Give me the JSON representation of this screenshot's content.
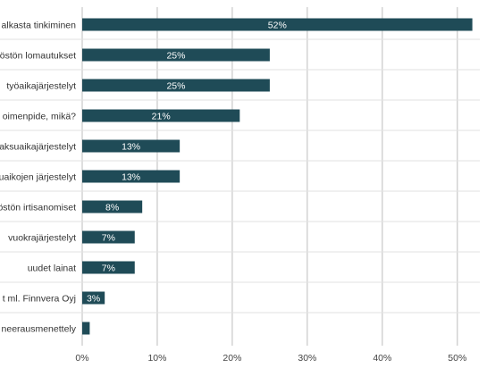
{
  "chart_data": {
    "type": "bar",
    "orientation": "horizontal",
    "title": "",
    "xlabel": "",
    "ylabel": "",
    "categories": [
      "alkasta tinkiminen",
      "östön lomautukset",
      "työaikajärjestelyt",
      "oimenpide, mikä?",
      "aksuaikajärjestelyt",
      "uaikojen järjestelyt",
      "östön irtisanomiset",
      "vuokrajärjestelyt",
      "uudet lainat",
      "t ml. Finnvera Oyj",
      "neerausmenettely"
    ],
    "values": [
      52,
      25,
      25,
      21,
      13,
      13,
      8,
      7,
      7,
      3,
      1
    ],
    "value_labels": [
      "52%",
      "25%",
      "25%",
      "21%",
      "13%",
      "13%",
      "8%",
      "7%",
      "7%",
      "3%",
      ""
    ],
    "xlim": [
      0,
      53
    ],
    "x_ticks": [
      0,
      10,
      20,
      30,
      40,
      50
    ],
    "x_tick_labels": [
      "0%",
      "10%",
      "20%",
      "30%",
      "40%",
      "50%"
    ],
    "grid": true,
    "legend": "none",
    "bar_color": "#1f4b57",
    "label_color": "#ffffff"
  }
}
